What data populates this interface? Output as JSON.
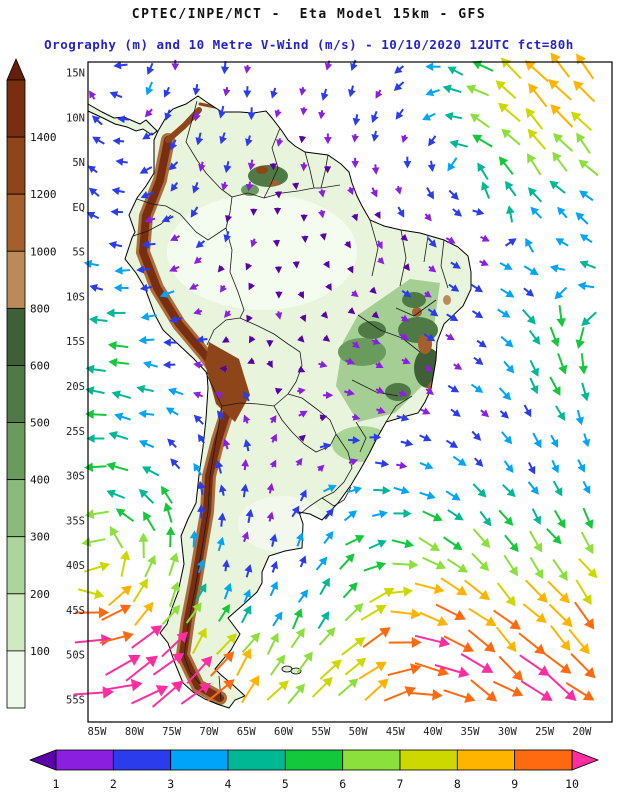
{
  "header": {
    "title1": "CPTEC/INPE/MCT -  Eta Model 15km - GFS",
    "title2": "Orography (m) and 10 Metre V-Wind (m/s) - 10/10/2020 12UTC fct=80h",
    "title2_color": "#2222cc"
  },
  "map": {
    "lat_labels": [
      "15N",
      "10N",
      "5N",
      "EQ",
      "5S",
      "10S",
      "15S",
      "20S",
      "25S",
      "30S",
      "35S",
      "40S",
      "45S",
      "50S",
      "55S"
    ],
    "lon_labels": [
      "85W",
      "80W",
      "75W",
      "70W",
      "65W",
      "60W",
      "55W",
      "50W",
      "45W",
      "40W",
      "35W",
      "30W",
      "25W",
      "20W"
    ]
  },
  "orography_scale": {
    "labels": [
      "1400",
      "1200",
      "1000",
      "800",
      "600",
      "500",
      "400",
      "300",
      "200",
      "100"
    ],
    "arrow_color": "#641e0a",
    "colors": [
      "#7a2e10",
      "#8f451a",
      "#a45f2c",
      "#bc8a58",
      "#3f5f37",
      "#4f7a45",
      "#699c5c",
      "#8abb7c",
      "#abd59c",
      "#cfeac0",
      "#eff9e9"
    ]
  },
  "wind_scale": {
    "labels": [
      "1",
      "2",
      "3",
      "4",
      "5",
      "6",
      "7",
      "8",
      "9",
      "10"
    ],
    "below_color": "#5a00a8",
    "above_color": "#ff2ea0",
    "colors": [
      "#8a1fe0",
      "#2a3cec",
      "#00a4f8",
      "#00b894",
      "#14c83c",
      "#8ce03c",
      "#ccd800",
      "#ffb400",
      "#ff6a10"
    ]
  }
}
